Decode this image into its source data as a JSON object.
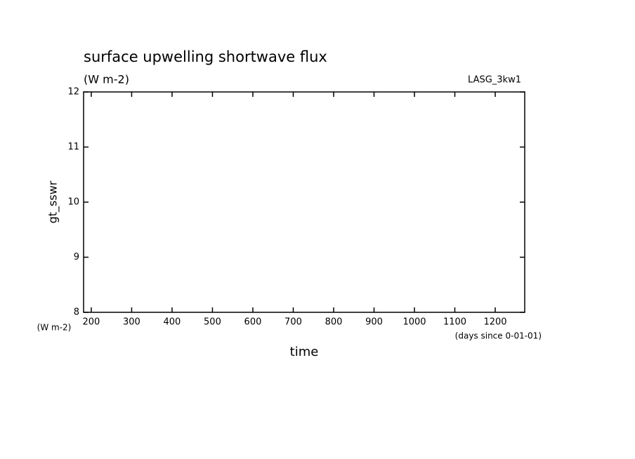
{
  "chart_data": {
    "type": "line",
    "title": "surface upwelling shortwave flux",
    "subtitle": "(W m-2)",
    "annotation": "LASG_3kw1",
    "ylabel": "gt_sswr",
    "yunits": "(W m-2)",
    "xlabel": "time",
    "xunits": "(days since 0-01-01)",
    "series": [],
    "xlim": [
      181,
      1273
    ],
    "xticks": [
      200,
      300,
      400,
      500,
      600,
      700,
      800,
      900,
      1000,
      1100,
      1200
    ],
    "ylim": [
      8,
      12
    ],
    "yticks": [
      8,
      9,
      10,
      11,
      12
    ],
    "grid": false
  }
}
